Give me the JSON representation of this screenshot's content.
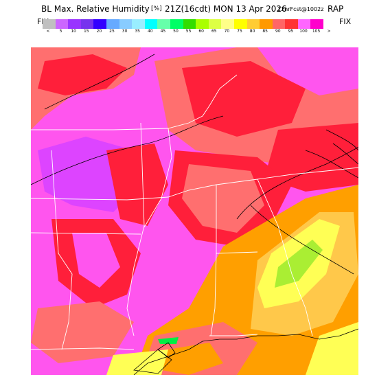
{
  "header": {
    "product": "BL Max. Relative Humidity",
    "units": "[%]",
    "valid": "21Z(16cdt) MON 13 Apr 2026",
    "forecast": "12hrFcst@1002z",
    "model": "RAP"
  },
  "legend": {
    "fix_left": "FIX",
    "fix_right": "FIX",
    "under": "<",
    "over": ">",
    "ticks": [
      "5",
      "10",
      "15",
      "20",
      "25",
      "30",
      "35",
      "40",
      "45",
      "50",
      "55",
      "60",
      "65",
      "70",
      "75",
      "80",
      "85",
      "90",
      "95",
      "100",
      "105"
    ],
    "colors": [
      "#c0c0c0",
      "#cc66ff",
      "#9933ff",
      "#7733ee",
      "#3300ff",
      "#66aaff",
      "#88ccff",
      "#99eeff",
      "#00ffff",
      "#66ffaa",
      "#00ff66",
      "#33dd00",
      "#aaff00",
      "#ddff44",
      "#ffff88",
      "#ffff00",
      "#ffcc33",
      "#ff9900",
      "#ff6666",
      "#ff3333",
      "#ff66ff",
      "#ff00cc"
    ]
  },
  "map": {
    "background": "#ff55ee",
    "colors": {
      "magenta": "#ff55ee",
      "violet": "#dd44ff",
      "salmon": "#ff6f6f",
      "red": "#ff1f3a",
      "orange": "#ff9f00",
      "light_orange": "#ffc84a",
      "yellow": "#ffff55",
      "lime": "#aaee33",
      "green": "#00ee44",
      "border": "#ffffff",
      "contour": "#000000"
    }
  }
}
